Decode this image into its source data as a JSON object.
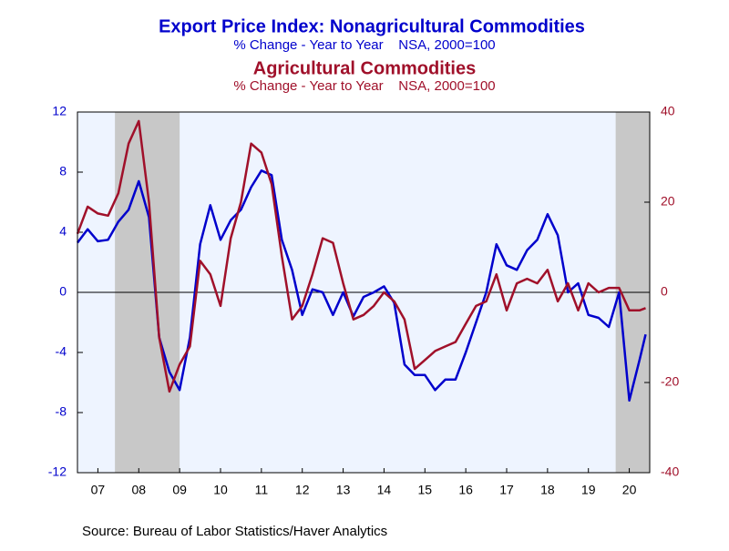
{
  "chart_data": {
    "type": "line",
    "source": "Source:  Bureau of Labor Statistics/Haver Analytics",
    "x": [
      2007,
      2007.25,
      2007.5,
      2007.75,
      2008,
      2008.25,
      2008.5,
      2008.75,
      2009,
      2009.25,
      2009.5,
      2009.75,
      2010,
      2010.25,
      2010.5,
      2010.75,
      2011,
      2011.25,
      2011.5,
      2011.75,
      2012,
      2012.25,
      2012.5,
      2012.75,
      2013,
      2013.25,
      2013.5,
      2013.75,
      2014,
      2014.25,
      2014.5,
      2014.75,
      2015,
      2015.25,
      2015.5,
      2015.75,
      2016,
      2016.25,
      2016.5,
      2016.75,
      2017,
      2017.25,
      2017.5,
      2017.75,
      2018,
      2018.25,
      2018.5,
      2018.75,
      2019,
      2019.25,
      2019.5,
      2019.75,
      2020,
      2020.25,
      2020.5,
      2020.75,
      2020.9
    ],
    "series": [
      {
        "name": "Export Price Index: Nonagricultural Commodities",
        "subtitle": "% Change - Year to Year    NSA, 2000=100",
        "color": "#0000cc",
        "axis": "y",
        "values": [
          3.3,
          4.2,
          3.4,
          3.5,
          4.7,
          5.5,
          7.4,
          5.0,
          -3,
          -5.3,
          -6.5,
          -3,
          3.2,
          5.8,
          3.5,
          4.8,
          5.5,
          7.0,
          8.1,
          7.8,
          3.5,
          1.5,
          -1.5,
          0.2,
          0,
          -1.5,
          0,
          -1.6,
          -0.3,
          0,
          0.4,
          -0.7,
          -4.8,
          -5.5,
          -5.5,
          -6.5,
          -5.8,
          -5.8,
          -4,
          -2,
          0,
          3.2,
          1.8,
          1.5,
          2.8,
          3.5,
          5.2,
          3.8,
          0,
          0.6,
          -1.5,
          -1.7,
          -2.3,
          0,
          -7.2,
          -4.5,
          -2.8
        ]
      },
      {
        "name": "Agricultural Commodities",
        "subtitle": "% Change - Year to Year    NSA, 2000=100",
        "color": "#a0102a",
        "axis": "y2",
        "values": [
          13,
          19,
          17.5,
          17,
          22,
          33,
          38,
          20,
          -10,
          -22,
          -16,
          -12,
          7,
          4,
          -3,
          12,
          20,
          33,
          31,
          24,
          8,
          -6,
          -3,
          4,
          12,
          11,
          2,
          -6,
          -5,
          -3,
          0,
          -2,
          -6,
          -17,
          -15,
          -13,
          -12,
          -11,
          -7,
          -3,
          -2,
          4,
          -4,
          2,
          3,
          2,
          5,
          -2,
          2,
          -4,
          2,
          0,
          1,
          1,
          -4,
          -4,
          -3.5
        ]
      }
    ],
    "xlim": [
      2007,
      2021
    ],
    "xticks": [
      {
        "value": 2007.5,
        "label": "07"
      },
      {
        "value": 2008.5,
        "label": "08"
      },
      {
        "value": 2009.5,
        "label": "09"
      },
      {
        "value": 2010.5,
        "label": "10"
      },
      {
        "value": 2011.5,
        "label": "11"
      },
      {
        "value": 2012.5,
        "label": "12"
      },
      {
        "value": 2013.5,
        "label": "13"
      },
      {
        "value": 2014.5,
        "label": "14"
      },
      {
        "value": 2015.5,
        "label": "15"
      },
      {
        "value": 2016.5,
        "label": "16"
      },
      {
        "value": 2017.5,
        "label": "17"
      },
      {
        "value": 2018.5,
        "label": "18"
      },
      {
        "value": 2019.5,
        "label": "19"
      },
      {
        "value": 2020.5,
        "label": "20"
      }
    ],
    "ylim": [
      -12,
      12
    ],
    "yticks": [
      -12,
      -8,
      -4,
      0,
      4,
      8,
      12
    ],
    "y2lim": [
      -40,
      40
    ],
    "y2ticks": [
      -40,
      -20,
      0,
      20,
      40
    ],
    "recessions": [
      [
        2007.917,
        2009.5
      ],
      [
        2020.167,
        2021
      ]
    ],
    "zero_line": true
  }
}
